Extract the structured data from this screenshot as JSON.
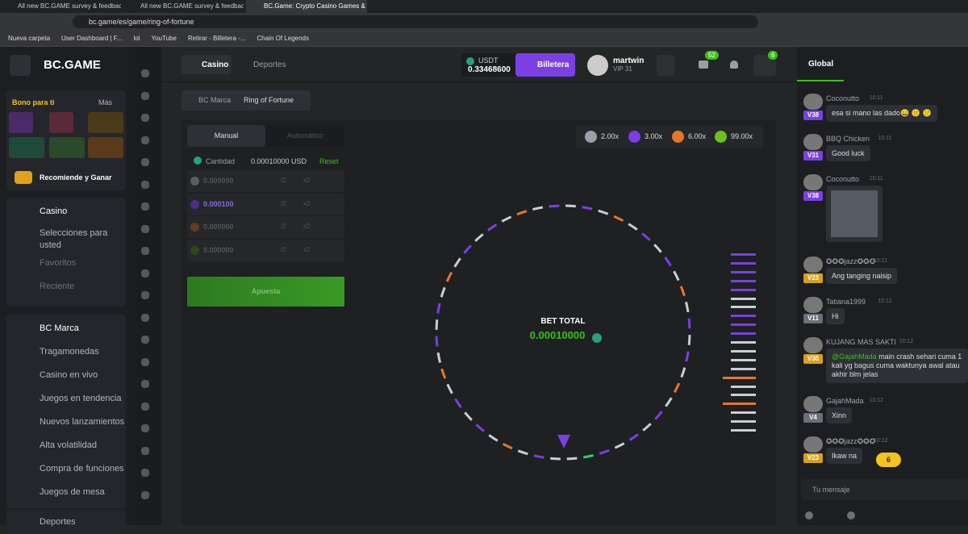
{
  "browser": {
    "tabs": [
      "All new BC.GAME survey & feedback",
      "All new BC.GAME survey & feedback",
      "BC.Game: Crypto Casino Games &"
    ],
    "url": "bc.game/es/game/ring-of-fortune",
    "bookmarks": [
      "Nueva carpeta",
      "User Dashboard | F...",
      "lol",
      "YouTube",
      "Retirar - Billetera -...",
      "Chain Of Legends"
    ]
  },
  "header": {
    "logo": "BC.GAME",
    "nav": [
      "Casino",
      "Deportes"
    ],
    "currency": "USDT",
    "balance": "0.33468600",
    "wallet": "Billetera",
    "user": "martwin",
    "vip": "VIP 31",
    "mail_count": "52",
    "chat_count": "6"
  },
  "sidebar": {
    "bonus": "Bono para ti",
    "more": "Más",
    "refer": "Recomiende y Ganar",
    "casino": "Casino",
    "casino_items": [
      "Selecciones para usted",
      "Favoritos",
      "Reciente"
    ],
    "brand": "BC Marca",
    "brand_items": [
      "Tragamonedas",
      "Casino en vivo",
      "Juegos en tendencia",
      "Nuevos lanzamientos",
      "Alta volatilidad",
      "Compra de funciones",
      "Juegos de mesa"
    ],
    "sports": "Deportes"
  },
  "game": {
    "breadcrumb": [
      "BC Marca",
      "Ring of Fortune"
    ],
    "tabs": [
      "Manual",
      "Automático"
    ],
    "amount_label": "Cantidad",
    "amount": "0.00010000 USD",
    "reset": "Reset",
    "rows": [
      {
        "value": "0.000000",
        "half": "/2",
        "double": "x2"
      },
      {
        "value": "0.000100",
        "half": "/2",
        "double": "x2"
      },
      {
        "value": "0.000000",
        "half": "/2",
        "double": "x2"
      },
      {
        "value": "0.000000",
        "half": "/2",
        "double": "x2"
      }
    ],
    "bet_button": "Apuesta",
    "multipliers": [
      "2.00x",
      "3.00x",
      "6.00x",
      "99.00x"
    ],
    "bet_total_label": "BET TOTAL",
    "bet_total": "0.00010000"
  },
  "chat": {
    "tab": "Global",
    "messages": [
      {
        "user": "Coconutto",
        "time": "10:11",
        "vip": "V38",
        "text": "esa si mano las dado😀 😕 😕"
      },
      {
        "user": "BBQ Chicken",
        "time": "10:11",
        "vip": "V31",
        "text": "Good luck"
      },
      {
        "user": "Coconutto",
        "time": "10:11",
        "vip": "V38",
        "text": null
      },
      {
        "user": "✪✪✪jazz✪✪✪",
        "time": "10:11",
        "vip": "V23",
        "text": "Ang tanging naisip"
      },
      {
        "user": "Tatiana1999",
        "time": "10:12",
        "vip": "V11",
        "text": "Hi"
      },
      {
        "user": "KUJANG MAS SAKTI",
        "time": "10:12",
        "vip": "V30",
        "mention": "@GajahMada",
        "text": "main crash sehari cuma 1 kali yg bagus cuma waktunya awal atau akhir blm jelas"
      },
      {
        "user": "GajahMada",
        "time": "10:12",
        "vip": "V4",
        "text": "Xinn"
      },
      {
        "user": "✪✪✪jazz✪✪✪",
        "time": "10:12",
        "vip": "V23",
        "text": "Ikaw na"
      }
    ],
    "unread": "6",
    "placeholder": "Tu mensaje"
  }
}
